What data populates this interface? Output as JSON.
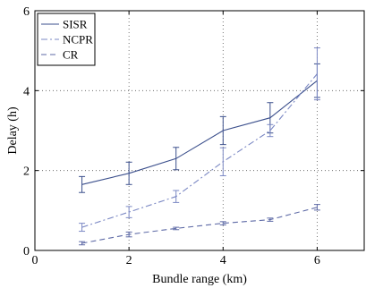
{
  "chart_data": {
    "type": "line",
    "title": "",
    "xlabel": "Bundle range (km)",
    "ylabel": "Delay (h)",
    "xlim": [
      0,
      7
    ],
    "ylim": [
      0,
      6
    ],
    "xticks": [
      0,
      2,
      4,
      6
    ],
    "yticks": [
      0,
      2,
      4,
      6
    ],
    "grid": true,
    "grid_style": "dotted",
    "legend_position": "top-left",
    "x": [
      1,
      2,
      3,
      4,
      5,
      6
    ],
    "series": [
      {
        "name": "SISR",
        "line_style": "solid",
        "color": "#3b4f8c",
        "values": [
          1.65,
          1.93,
          2.3,
          3.0,
          3.32,
          4.25
        ],
        "error": [
          0.2,
          0.28,
          0.28,
          0.35,
          0.38,
          0.42
        ]
      },
      {
        "name": "NCPR",
        "line_style": "dashdot",
        "color": "#7b88c4",
        "values": [
          0.58,
          0.96,
          1.35,
          2.22,
          3.0,
          4.42
        ],
        "error": [
          0.1,
          0.14,
          0.15,
          0.35,
          0.15,
          0.65
        ]
      },
      {
        "name": "CR",
        "line_style": "dashed",
        "color": "#5e6aa6",
        "values": [
          0.18,
          0.4,
          0.55,
          0.68,
          0.77,
          1.08
        ],
        "error": [
          0.04,
          0.06,
          0.03,
          0.04,
          0.04,
          0.07
        ]
      }
    ]
  }
}
